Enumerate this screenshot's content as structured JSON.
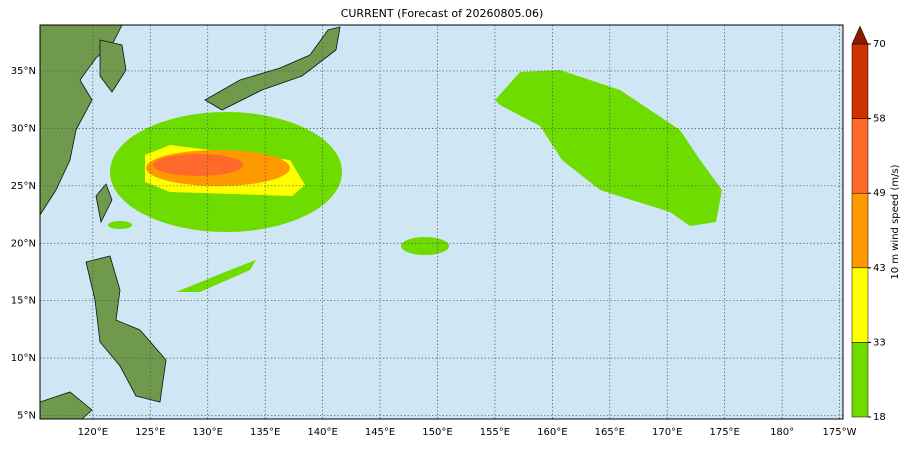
{
  "chart_data": {
    "type": "map",
    "title": "CURRENT (Forecast of 20260805.06)",
    "xlim": [
      115.4,
      185.3
    ],
    "ylim": [
      4.7,
      39.0
    ],
    "xticks": [
      {
        "value": 120,
        "label": "120°E"
      },
      {
        "value": 125,
        "label": "125°E"
      },
      {
        "value": 130,
        "label": "130°E"
      },
      {
        "value": 135,
        "label": "135°E"
      },
      {
        "value": 140,
        "label": "140°E"
      },
      {
        "value": 145,
        "label": "145°E"
      },
      {
        "value": 150,
        "label": "150°E"
      },
      {
        "value": 155,
        "label": "155°E"
      },
      {
        "value": 160,
        "label": "160°E"
      },
      {
        "value": 165,
        "label": "165°E"
      },
      {
        "value": 170,
        "label": "170°E"
      },
      {
        "value": 175,
        "label": "175°E"
      },
      {
        "value": 180,
        "label": "180°"
      },
      {
        "value": -175,
        "label": "175°W"
      }
    ],
    "yticks": [
      {
        "value": 5,
        "label": "5°N"
      },
      {
        "value": 10,
        "label": "10°N"
      },
      {
        "value": 15,
        "label": "15°N"
      },
      {
        "value": 20,
        "label": "20°N"
      },
      {
        "value": 25,
        "label": "25°N"
      },
      {
        "value": 30,
        "label": "30°N"
      },
      {
        "value": 35,
        "label": "35°N"
      }
    ],
    "grid": true,
    "colorbar": {
      "label": "10 m wind speed (m/s)",
      "levels": [
        18,
        33,
        43,
        49,
        58,
        70
      ],
      "colors": [
        "#6fdc00",
        "#ffff00",
        "#ff9900",
        "#ff6a2a",
        "#cc3300"
      ],
      "extend_color": "#8b1a00"
    }
  }
}
